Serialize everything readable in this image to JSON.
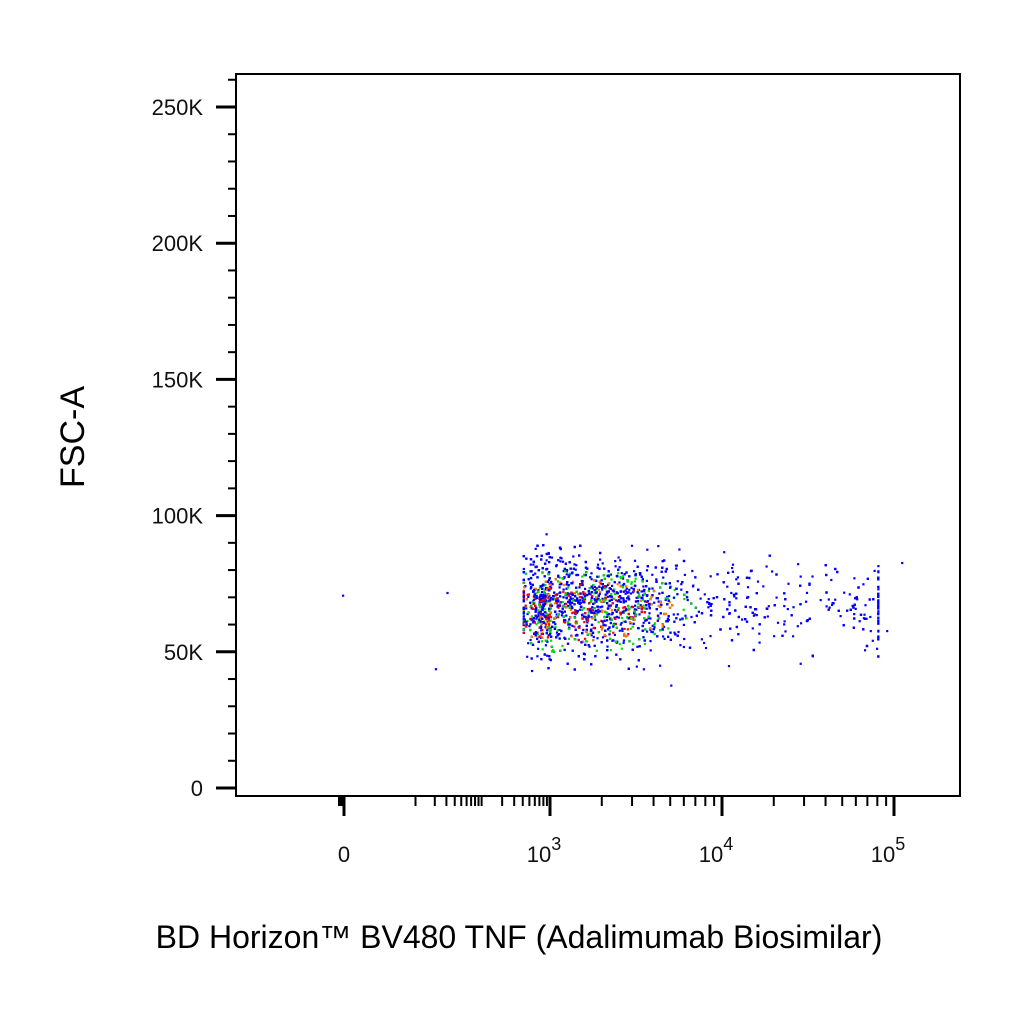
{
  "chart_data": {
    "type": "scatter",
    "title": "",
    "xlabel": "BD Horizon™ BV480 TNF (Adalimumab Biosimilar)",
    "ylabel": "FSC-A",
    "x_scale": "biexponential",
    "xlim": [
      -200,
      150000
    ],
    "ylim": [
      0,
      262144
    ],
    "grid": false,
    "x_ticks": [
      {
        "value": 0,
        "label": "0"
      },
      {
        "value": 1000,
        "label": "10",
        "exp": "3"
      },
      {
        "value": 10000,
        "label": "10",
        "exp": "4"
      },
      {
        "value": 100000,
        "label": "10",
        "exp": "5"
      }
    ],
    "y_ticks": [
      {
        "value": 0,
        "label": "0"
      },
      {
        "value": 50000,
        "label": "50K"
      },
      {
        "value": 100000,
        "label": "100K"
      },
      {
        "value": 150000,
        "label": "150K"
      },
      {
        "value": 200000,
        "label": "200K"
      },
      {
        "value": 250000,
        "label": "250K"
      }
    ],
    "density_colors": [
      "#0000ff",
      "#00e000",
      "#ff7f00",
      "#ff0000"
    ],
    "population": {
      "n_events": 3200,
      "x_median": 1500,
      "x_range": [
        400,
        80000
      ],
      "y_median": 68000,
      "y_range": [
        35000,
        100000
      ]
    }
  }
}
